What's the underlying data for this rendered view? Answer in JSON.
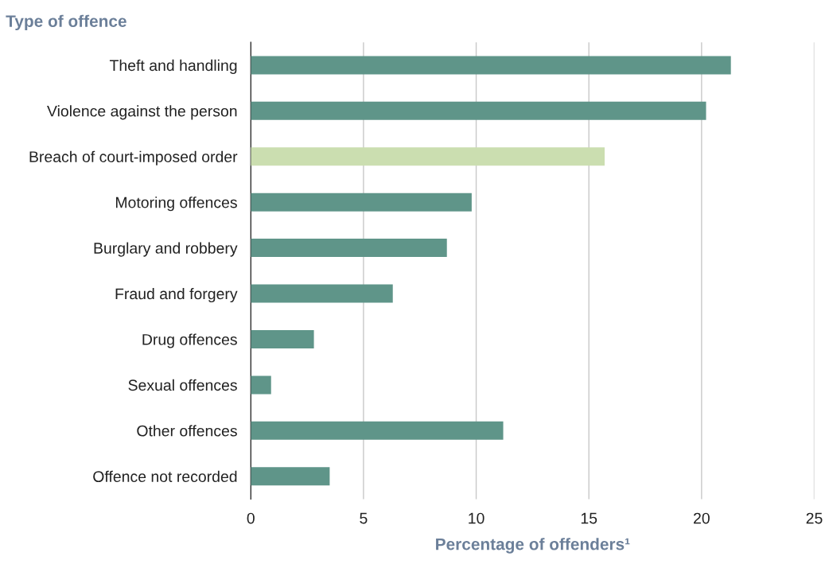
{
  "chart_data": {
    "type": "bar",
    "orientation": "horizontal",
    "title": "Type of offence",
    "xlabel": "Percentage of offenders¹",
    "categories": [
      "Theft and handling",
      "Violence against the person",
      "Breach of court-imposed order",
      "Motoring offences",
      "Burglary and robbery",
      "Fraud and forgery",
      "Drug offences",
      "Sexual offences",
      "Other offences",
      "Offence not recorded"
    ],
    "values": [
      21.3,
      20.2,
      15.7,
      9.8,
      8.7,
      6.3,
      2.8,
      0.9,
      11.2,
      3.5
    ],
    "colors": [
      "#5f9589",
      "#5f9589",
      "#cbdeb0",
      "#5f9589",
      "#5f9589",
      "#5f9589",
      "#5f9589",
      "#5f9589",
      "#5f9589",
      "#5f9589"
    ],
    "xlim": [
      0,
      25
    ],
    "xticks": [
      0,
      5,
      10,
      15,
      20,
      25
    ],
    "grid": "x"
  }
}
